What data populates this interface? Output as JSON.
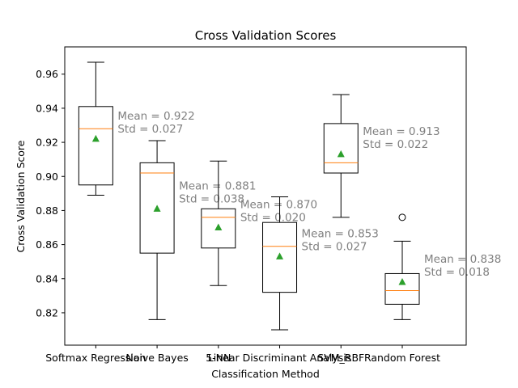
{
  "chart_data": {
    "type": "box",
    "title": "Cross Validation Scores",
    "xlabel": "Classification Method",
    "ylabel": "Cross Validation Score",
    "ylim": [
      0.801,
      0.976
    ],
    "yticks": [
      0.82,
      0.84,
      0.86,
      0.88,
      0.9,
      0.92,
      0.94,
      0.96
    ],
    "ytick_labels": [
      "0.82",
      "0.84",
      "0.86",
      "0.88",
      "0.90",
      "0.92",
      "0.94",
      "0.96"
    ],
    "grid": false,
    "colors": {
      "box": "#000000",
      "median": "#ff7f0e",
      "mean": "#2ca02c",
      "annotation": "#808080",
      "outlier": "#000000"
    },
    "categories": [
      "Softmax Regression",
      "Naive Bayes",
      "5-NN",
      "Linear Discriminant Analysis",
      "SVM_RBF",
      "Random Forest"
    ],
    "boxes": [
      {
        "label": "Softmax Regression",
        "whisker_low": 0.889,
        "q1": 0.895,
        "median": 0.928,
        "q3": 0.941,
        "whisker_high": 0.967,
        "mean": 0.922,
        "outliers": [],
        "annotation": [
          "Mean = 0.922",
          "Std = 0.027"
        ]
      },
      {
        "label": "Naive Bayes",
        "whisker_low": 0.816,
        "q1": 0.855,
        "median": 0.902,
        "q3": 0.908,
        "whisker_high": 0.921,
        "mean": 0.881,
        "outliers": [],
        "annotation": [
          "Mean = 0.881",
          "Std = 0.038"
        ]
      },
      {
        "label": "5-NN",
        "whisker_low": 0.836,
        "q1": 0.858,
        "median": 0.876,
        "q3": 0.881,
        "whisker_high": 0.909,
        "mean": 0.87,
        "outliers": [],
        "annotation": [
          "Mean = 0.870",
          "Std = 0.020"
        ]
      },
      {
        "label": "Linear Discriminant Analysis",
        "whisker_low": 0.81,
        "q1": 0.832,
        "median": 0.859,
        "q3": 0.873,
        "whisker_high": 0.888,
        "mean": 0.853,
        "outliers": [],
        "annotation": [
          "Mean = 0.853",
          "Std = 0.027"
        ]
      },
      {
        "label": "SVM_RBF",
        "whisker_low": 0.876,
        "q1": 0.902,
        "median": 0.908,
        "q3": 0.931,
        "whisker_high": 0.948,
        "mean": 0.913,
        "outliers": [],
        "annotation": [
          "Mean = 0.913",
          "Std = 0.022"
        ]
      },
      {
        "label": "Random Forest",
        "whisker_low": 0.816,
        "q1": 0.825,
        "median": 0.833,
        "q3": 0.843,
        "whisker_high": 0.862,
        "mean": 0.838,
        "outliers": [
          0.876
        ],
        "annotation": [
          "Mean = 0.838",
          "Std = 0.018"
        ]
      }
    ]
  }
}
